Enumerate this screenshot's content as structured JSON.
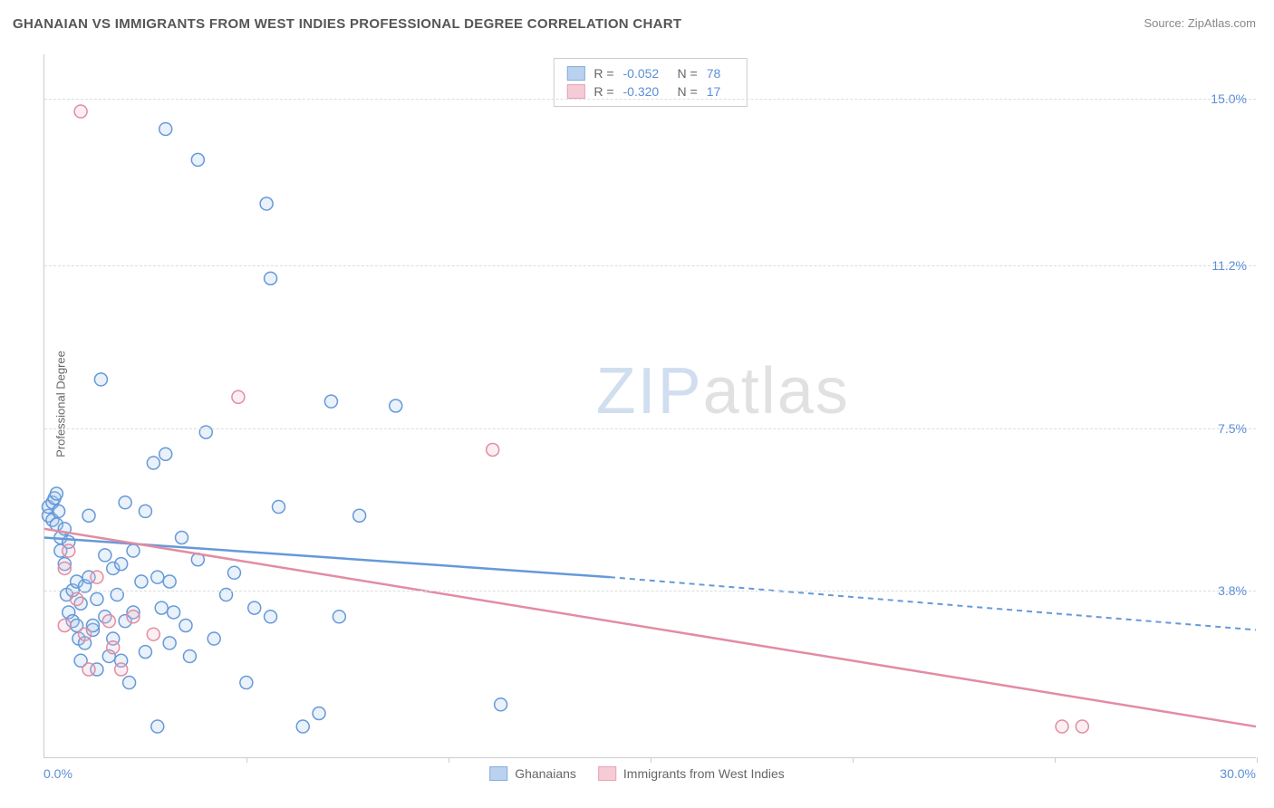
{
  "title": "GHANAIAN VS IMMIGRANTS FROM WEST INDIES PROFESSIONAL DEGREE CORRELATION CHART",
  "source": "Source: ZipAtlas.com",
  "y_axis_label": "Professional Degree",
  "watermark_zip": "ZIP",
  "watermark_atlas": "atlas",
  "chart": {
    "type": "scatter",
    "background_color": "#ffffff",
    "grid_color": "#dddddd",
    "axis_color": "#cccccc",
    "label_color": "#5b8fd6",
    "text_color": "#666666",
    "title_fontsize": 15,
    "label_fontsize": 14,
    "xlim": [
      0,
      30
    ],
    "ylim": [
      0,
      16
    ],
    "x_origin": "0.0%",
    "x_max": "30.0%",
    "x_ticks": [
      0,
      5,
      10,
      15,
      20,
      25,
      30
    ],
    "y_ticks": [
      {
        "v": 3.8,
        "label": "3.8%"
      },
      {
        "v": 7.5,
        "label": "7.5%"
      },
      {
        "v": 11.2,
        "label": "11.2%"
      },
      {
        "v": 15.0,
        "label": "15.0%"
      }
    ],
    "marker_radius": 7,
    "marker_stroke_width": 1.5,
    "marker_fill_opacity": 0.25,
    "series": [
      {
        "key": "ghanaians",
        "label": "Ghanaians",
        "color_stroke": "#6699d8",
        "color_fill": "#a9c7ea",
        "R": "-0.052",
        "N": "78",
        "regression": {
          "x1": 0,
          "y1": 5.0,
          "x2_solid": 14,
          "y2_solid": 4.1,
          "x2": 30,
          "y2": 2.9
        },
        "points": [
          [
            0.1,
            5.5
          ],
          [
            0.1,
            5.7
          ],
          [
            0.2,
            5.4
          ],
          [
            0.2,
            5.8
          ],
          [
            0.25,
            5.9
          ],
          [
            0.3,
            5.3
          ],
          [
            0.3,
            6.0
          ],
          [
            0.35,
            5.6
          ],
          [
            0.4,
            5.0
          ],
          [
            0.4,
            4.7
          ],
          [
            0.5,
            5.2
          ],
          [
            0.5,
            4.4
          ],
          [
            0.55,
            3.7
          ],
          [
            0.6,
            4.9
          ],
          [
            0.6,
            3.3
          ],
          [
            0.7,
            3.1
          ],
          [
            0.7,
            3.8
          ],
          [
            0.8,
            4.0
          ],
          [
            0.8,
            3.0
          ],
          [
            0.85,
            2.7
          ],
          [
            0.9,
            3.5
          ],
          [
            0.9,
            2.2
          ],
          [
            1.0,
            3.9
          ],
          [
            1.0,
            2.6
          ],
          [
            1.1,
            5.5
          ],
          [
            1.1,
            4.1
          ],
          [
            1.2,
            2.9
          ],
          [
            1.2,
            3.0
          ],
          [
            1.3,
            3.6
          ],
          [
            1.3,
            2.0
          ],
          [
            1.4,
            8.6
          ],
          [
            1.5,
            4.6
          ],
          [
            1.5,
            3.2
          ],
          [
            1.6,
            2.3
          ],
          [
            1.7,
            4.3
          ],
          [
            1.7,
            2.7
          ],
          [
            1.8,
            3.7
          ],
          [
            1.9,
            4.4
          ],
          [
            1.9,
            2.2
          ],
          [
            2.0,
            5.8
          ],
          [
            2.0,
            3.1
          ],
          [
            2.1,
            1.7
          ],
          [
            2.2,
            4.7
          ],
          [
            2.2,
            3.3
          ],
          [
            2.4,
            4.0
          ],
          [
            2.5,
            5.6
          ],
          [
            2.5,
            2.4
          ],
          [
            2.7,
            6.7
          ],
          [
            2.8,
            4.1
          ],
          [
            2.8,
            0.7
          ],
          [
            2.9,
            3.4
          ],
          [
            3.0,
            14.3
          ],
          [
            3.0,
            6.9
          ],
          [
            3.1,
            2.6
          ],
          [
            3.1,
            4.0
          ],
          [
            3.2,
            3.3
          ],
          [
            3.4,
            5.0
          ],
          [
            3.5,
            3.0
          ],
          [
            3.6,
            2.3
          ],
          [
            3.8,
            4.5
          ],
          [
            3.8,
            13.6
          ],
          [
            4.0,
            7.4
          ],
          [
            4.2,
            2.7
          ],
          [
            4.5,
            3.7
          ],
          [
            4.7,
            4.2
          ],
          [
            5.0,
            1.7
          ],
          [
            5.2,
            3.4
          ],
          [
            5.5,
            12.6
          ],
          [
            5.6,
            10.9
          ],
          [
            5.6,
            3.2
          ],
          [
            5.8,
            5.7
          ],
          [
            6.4,
            0.7
          ],
          [
            6.8,
            1.0
          ],
          [
            7.1,
            8.1
          ],
          [
            7.3,
            3.2
          ],
          [
            7.8,
            5.5
          ],
          [
            8.7,
            8.0
          ],
          [
            11.3,
            1.2
          ]
        ]
      },
      {
        "key": "west_indies",
        "label": "Immigrants from West Indies",
        "color_stroke": "#e28ca3",
        "color_fill": "#f3c0cd",
        "R": "-0.320",
        "N": "17",
        "regression": {
          "x1": 0,
          "y1": 5.2,
          "x2_solid": 30,
          "y2_solid": 0.7,
          "x2": 30,
          "y2": 0.7
        },
        "points": [
          [
            0.5,
            4.3
          ],
          [
            0.5,
            3.0
          ],
          [
            0.6,
            4.7
          ],
          [
            0.8,
            3.6
          ],
          [
            0.9,
            14.7
          ],
          [
            1.0,
            2.8
          ],
          [
            1.1,
            2.0
          ],
          [
            1.3,
            4.1
          ],
          [
            1.6,
            3.1
          ],
          [
            1.7,
            2.5
          ],
          [
            1.9,
            2.0
          ],
          [
            2.2,
            3.2
          ],
          [
            2.7,
            2.8
          ],
          [
            4.8,
            8.2
          ],
          [
            11.1,
            7.0
          ],
          [
            25.2,
            0.7
          ],
          [
            25.7,
            0.7
          ]
        ]
      }
    ]
  },
  "legend_top": {
    "R_label": "R =",
    "N_label": "N ="
  }
}
